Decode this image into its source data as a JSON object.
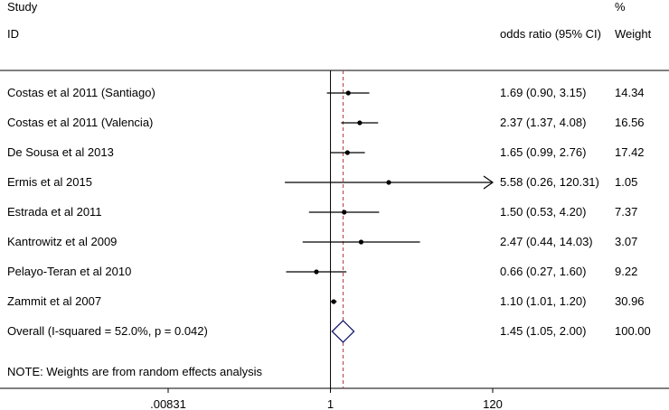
{
  "chart_data": {
    "type": "forest",
    "header": {
      "col1_top": "Study",
      "col1": "ID",
      "col2": "odds ratio (95% CI)",
      "col3_top": "%",
      "col3": "Weight"
    },
    "axis": {
      "scale": "log",
      "xlim": [
        0.00831,
        120
      ],
      "ticks": [
        {
          "value": 0.00831,
          "label": ".00831"
        },
        {
          "value": 1,
          "label": "1"
        },
        {
          "value": 120,
          "label": "120"
        }
      ],
      "null_line": 1,
      "overall_line": 1.45
    },
    "studies": [
      {
        "name": "Costas et al 2011 (Santiago)",
        "or": 1.69,
        "lo": 0.9,
        "hi": 3.15,
        "weight": 14.34,
        "ci_text": "1.69 (0.90, 3.15)",
        "weight_text": "14.34"
      },
      {
        "name": "Costas et al 2011 (Valencia)",
        "or": 2.37,
        "lo": 1.37,
        "hi": 4.08,
        "weight": 16.56,
        "ci_text": "2.37 (1.37, 4.08)",
        "weight_text": "16.56"
      },
      {
        "name": "De Sousa et al 2013",
        "or": 1.65,
        "lo": 0.99,
        "hi": 2.76,
        "weight": 17.42,
        "ci_text": "1.65 (0.99, 2.76)",
        "weight_text": "17.42"
      },
      {
        "name": "Ermis et al 2015",
        "or": 5.58,
        "lo": 0.26,
        "hi": 120.31,
        "weight": 1.05,
        "ci_text": "5.58 (0.26, 120.31)",
        "weight_text": "1.05"
      },
      {
        "name": "Estrada et al 2011",
        "or": 1.5,
        "lo": 0.53,
        "hi": 4.2,
        "weight": 7.37,
        "ci_text": "1.50 (0.53, 4.20)",
        "weight_text": "7.37"
      },
      {
        "name": "Kantrowitz et al 2009",
        "or": 2.47,
        "lo": 0.44,
        "hi": 14.03,
        "weight": 3.07,
        "ci_text": "2.47 (0.44, 14.03)",
        "weight_text": "3.07"
      },
      {
        "name": "Pelayo-Teran et al 2010",
        "or": 0.66,
        "lo": 0.27,
        "hi": 1.6,
        "weight": 9.22,
        "ci_text": "0.66 (0.27, 1.60)",
        "weight_text": "9.22"
      },
      {
        "name": "Zammit et al 2007",
        "or": 1.1,
        "lo": 1.01,
        "hi": 1.2,
        "weight": 30.96,
        "ci_text": "1.10 (1.01, 1.20)",
        "weight_text": "30.96"
      }
    ],
    "overall": {
      "name": "Overall  (I-squared = 52.0%, p = 0.042)",
      "or": 1.45,
      "lo": 1.05,
      "hi": 2.0,
      "weight": 100.0,
      "ci_text": "1.45 (1.05, 2.00)",
      "weight_text": "100.00"
    },
    "note": "NOTE: Weights are from random effects analysis",
    "colors": {
      "ink": "#000000",
      "diamond": "#1a1a6e",
      "overall_line": "#b04040"
    }
  }
}
